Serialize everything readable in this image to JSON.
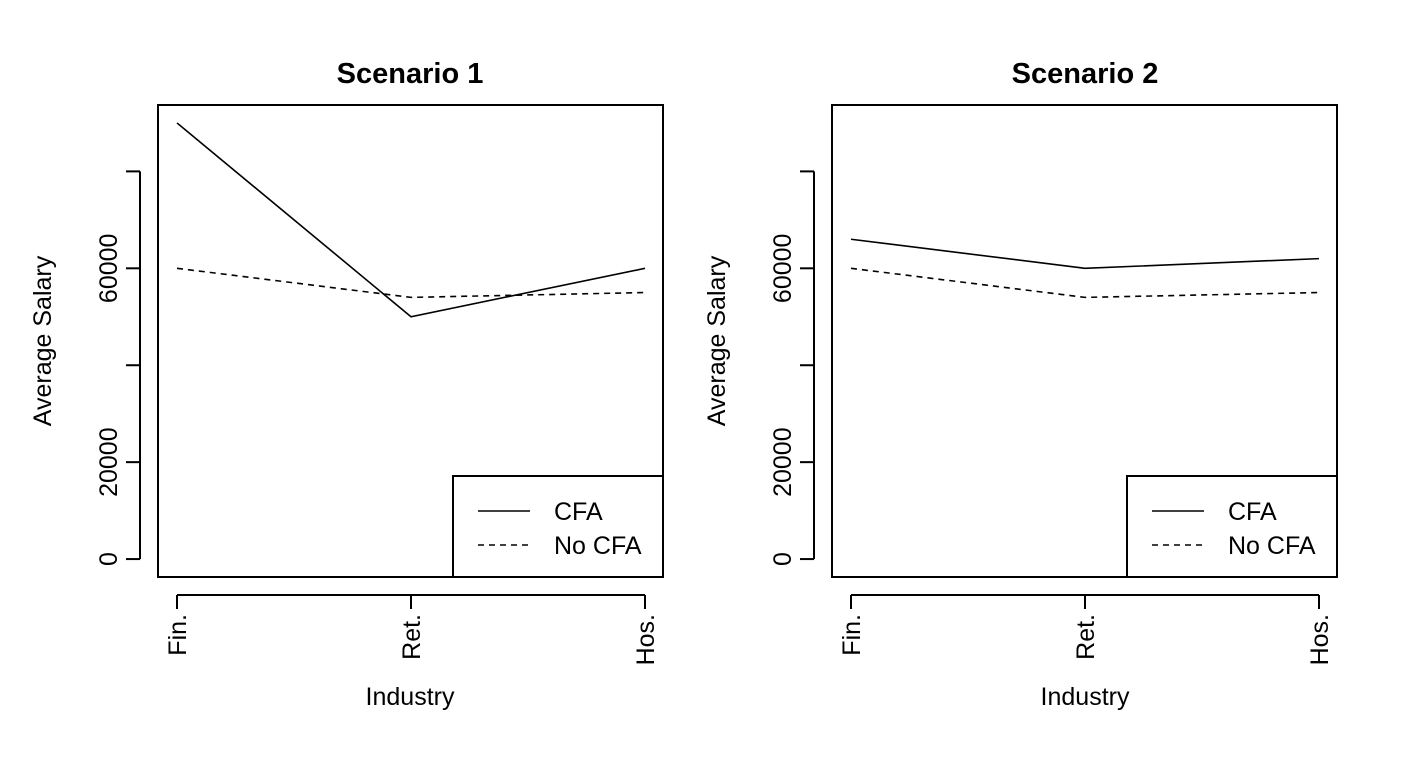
{
  "chart_data": [
    {
      "type": "line",
      "title": "Scenario 1",
      "xlabel": "Industry",
      "ylabel": "Average Salary",
      "categories": [
        "Fin.",
        "Ret.",
        "Hos."
      ],
      "yticks": [
        0,
        20000,
        40000,
        60000,
        80000
      ],
      "ytick_labels": [
        "0",
        "20000",
        "",
        "60000",
        ""
      ],
      "ylim": [
        -3700,
        93700
      ],
      "grid": false,
      "legend_position": "bottom-right",
      "series": [
        {
          "name": "CFA",
          "line_style": "solid",
          "values": [
            90000,
            50000,
            60000
          ]
        },
        {
          "name": "No CFA",
          "line_style": "dashed",
          "values": [
            60000,
            54000,
            55000
          ]
        }
      ]
    },
    {
      "type": "line",
      "title": "Scenario 2",
      "xlabel": "Industry",
      "ylabel": "Average Salary",
      "categories": [
        "Fin.",
        "Ret.",
        "Hos."
      ],
      "yticks": [
        0,
        20000,
        40000,
        60000,
        80000
      ],
      "ytick_labels": [
        "0",
        "20000",
        "",
        "60000",
        ""
      ],
      "ylim": [
        -3700,
        93700
      ],
      "grid": false,
      "legend_position": "bottom-right",
      "series": [
        {
          "name": "CFA",
          "line_style": "solid",
          "values": [
            66000,
            60000,
            62000
          ]
        },
        {
          "name": "No CFA",
          "line_style": "dashed",
          "values": [
            60000,
            54000,
            55000
          ]
        }
      ]
    }
  ]
}
